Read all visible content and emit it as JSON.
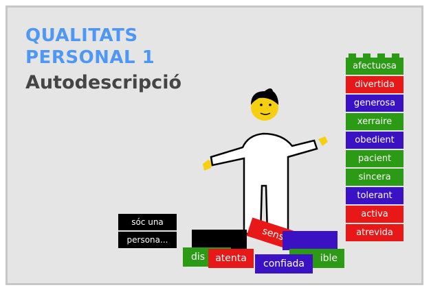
{
  "title": {
    "line1": "QUALITATS",
    "line2": "PERSONAL 1",
    "subtitle": "Autodescripció"
  },
  "colors": {
    "title_blue": "#4f97f5",
    "green": "#2b9b16",
    "red": "#e81818",
    "purple": "#3a12c4",
    "black": "#000000",
    "face_yellow": "#f5cf12"
  },
  "speech_brick": {
    "line1": "sóc una",
    "line2": "persona..."
  },
  "qualities": [
    {
      "label": "afectuosa",
      "color": "#2b9b16"
    },
    {
      "label": "divertida",
      "color": "#e81818"
    },
    {
      "label": "generosa",
      "color": "#3a12c4"
    },
    {
      "label": "xerraire",
      "color": "#2b9b16"
    },
    {
      "label": "obedient",
      "color": "#3a12c4"
    },
    {
      "label": "pacient",
      "color": "#2b9b16"
    },
    {
      "label": "sincera",
      "color": "#2b9b16"
    },
    {
      "label": "tolerant",
      "color": "#3a12c4"
    },
    {
      "label": "activa",
      "color": "#e81818"
    },
    {
      "label": "atrevida",
      "color": "#e81818"
    }
  ],
  "pile": {
    "a": "dis",
    "b": "sensil",
    "c": "ible",
    "d": "atenta",
    "e": "confiada"
  }
}
